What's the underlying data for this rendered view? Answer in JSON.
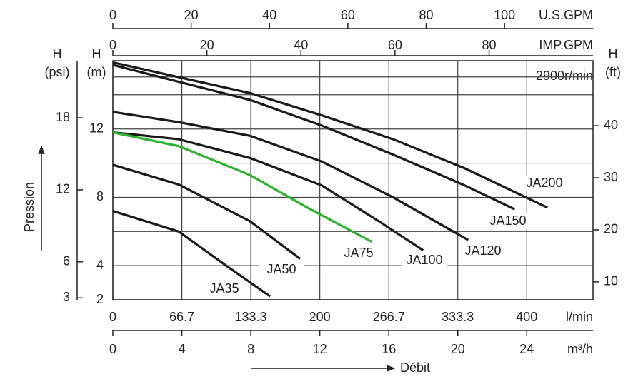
{
  "chart_data": {
    "type": "line",
    "annotation": "2900r/min",
    "xlabel": "l/min",
    "xlim": [
      0,
      464
    ],
    "xticks": [
      0,
      66.7,
      133.3,
      200,
      266.7,
      333.3,
      400
    ],
    "ylabel_top": "H",
    "ylabel": "(m)",
    "ylim": [
      2,
      16
    ],
    "yticks": [
      2,
      4,
      8,
      12
    ],
    "grid": true,
    "x_us_gpm": {
      "label": "U.S.GPM",
      "xlim": [
        0,
        122.6
      ],
      "xticks": [
        0,
        20,
        40,
        60,
        80,
        100
      ]
    },
    "x_imp_gpm": {
      "label": "IMP.GPM",
      "xlim": [
        0,
        102.1
      ],
      "xticks": [
        0,
        20,
        40,
        60,
        80
      ]
    },
    "x_m3h": {
      "label": "m³/h",
      "xlim": [
        0,
        27.84
      ],
      "xticks": [
        0,
        4,
        8,
        12,
        16,
        20,
        24
      ]
    },
    "y_psi": {
      "label_top": "H",
      "label": "(psi)",
      "ylim": [
        2.84,
        22.76
      ],
      "yticks": [
        3,
        6,
        12,
        18
      ]
    },
    "y_ft": {
      "label_top": "H",
      "label": "(ft)",
      "ylim": [
        6.56,
        52.49
      ],
      "yticks": [
        10,
        20,
        30,
        40
      ]
    },
    "pressure_label": "Pression",
    "flow_label": "Débit",
    "series": [
      {
        "name": "JA200",
        "color": "#1a1a1a",
        "x": [
          0,
          132.6,
          201.7,
          270.8,
          339.9,
          420
        ],
        "values": [
          15.9,
          14.1,
          12.8,
          11.4,
          9.7,
          7.4
        ]
      },
      {
        "name": "JA150",
        "color": "#1a1a1a",
        "x": [
          0,
          132.6,
          201.7,
          270.8,
          339.9,
          388.3
        ],
        "values": [
          15.75,
          13.7,
          12.2,
          10.5,
          8.7,
          7.3
        ]
      },
      {
        "name": "JA120",
        "color": "#1a1a1a",
        "x": [
          0,
          63.6,
          132.6,
          201.7,
          270.8,
          343.4
        ],
        "values": [
          13.0,
          12.4,
          11.6,
          10.1,
          8.0,
          5.5
        ]
      },
      {
        "name": "JA100",
        "color": "#1a1a1a",
        "x": [
          0,
          63.6,
          132.6,
          201.7,
          257,
          299.8
        ],
        "values": [
          11.8,
          11.4,
          10.3,
          8.7,
          6.6,
          4.9
        ]
      },
      {
        "name": "JA75",
        "color": "#2db32d",
        "x": [
          0,
          63.6,
          132.6,
          187.9,
          250.1
        ],
        "values": [
          11.8,
          11.0,
          9.3,
          7.4,
          5.4
        ]
      },
      {
        "name": "JA50",
        "color": "#1a1a1a",
        "x": [
          0,
          63.6,
          132.6,
          181
        ],
        "values": [
          9.9,
          8.75,
          6.6,
          4.4
        ]
      },
      {
        "name": "JA35",
        "color": "#1a1a1a",
        "x": [
          0,
          63.6,
          111.9,
          152
        ],
        "values": [
          7.2,
          6.0,
          3.9,
          2.2
        ]
      }
    ]
  }
}
